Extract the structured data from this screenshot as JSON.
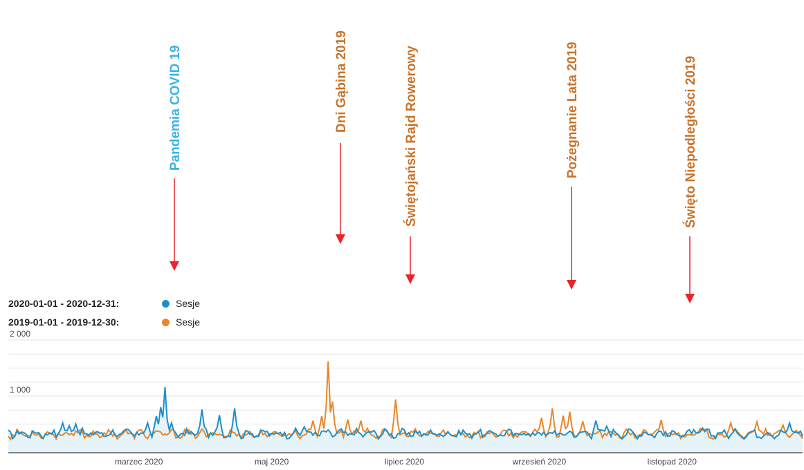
{
  "colors": {
    "series_2020": "#1f8fc8",
    "series_2019": "#e8862a",
    "annotation_2020": "#3cb3e6",
    "annotation_2019": "#c8742c",
    "arrow": "#e8262a",
    "gridline": "#e4e4e4",
    "area_fill": "#e6f3f8"
  },
  "legend": [
    {
      "range": "2020-01-01 - 2020-12-31:",
      "label": "Sesje",
      "color": "#1f8fc8"
    },
    {
      "range": "2019-01-01 - 2019-12-30:",
      "label": "Sesje",
      "color": "#e8862a"
    }
  ],
  "annotations": [
    {
      "text": "Pandemia COVID 19",
      "color": "#3cb3e6",
      "day": 70
    },
    {
      "text": "Dni Gąbina 2019",
      "color": "#c8742c",
      "day": 147
    },
    {
      "text": "Świętojański Rajd Rowerowy",
      "color": "#c8742c",
      "day": 178
    },
    {
      "text": "Pożegnanie Lata 2019",
      "color": "#c8742c",
      "day": 248
    },
    {
      "text": "Święto Niepodległości 2019",
      "color": "#c8742c",
      "day": 300
    }
  ],
  "chart_data": {
    "type": "line",
    "x_range": [
      "2020-01-01",
      "2020-12-31"
    ],
    "x_tick_labels": [
      {
        "label": "marzec 2020",
        "day": 60
      },
      {
        "label": "maj 2020",
        "day": 121
      },
      {
        "label": "lipiec 2020",
        "day": 182
      },
      {
        "label": "wrzesień 2020",
        "day": 244
      },
      {
        "label": "listopad 2020",
        "day": 305
      }
    ],
    "y_tick_labels": [
      "1 000",
      "2 000"
    ],
    "y_ticks": [
      1000,
      2000
    ],
    "ylim": [
      0,
      2000
    ],
    "series": [
      {
        "name": "Sesje",
        "period": "2020-01-01 - 2020-12-31",
        "color": "#1f8fc8",
        "baseline": 330,
        "amplitude": 70,
        "peaks": [
          [
            25,
            520
          ],
          [
            28,
            470
          ],
          [
            31,
            500
          ],
          [
            64,
            520
          ],
          [
            68,
            640
          ],
          [
            70,
            800
          ],
          [
            72,
            1160
          ],
          [
            75,
            520
          ],
          [
            89,
            760
          ],
          [
            97,
            660
          ],
          [
            104,
            780
          ],
          [
            136,
            450
          ],
          [
            270,
            560
          ],
          [
            275,
            460
          ],
          [
            319,
            430
          ],
          [
            359,
            520
          ]
        ]
      },
      {
        "name": "Sesje",
        "period": "2019-01-01 - 2019-12-30",
        "color": "#e8862a",
        "baseline": 320,
        "amplitude": 70,
        "peaks": [
          [
            140,
            560
          ],
          [
            144,
            640
          ],
          [
            147,
            1620
          ],
          [
            149,
            900
          ],
          [
            156,
            580
          ],
          [
            162,
            560
          ],
          [
            165,
            420
          ],
          [
            178,
            940
          ],
          [
            245,
            610
          ],
          [
            250,
            780
          ],
          [
            255,
            650
          ],
          [
            258,
            720
          ],
          [
            264,
            550
          ],
          [
            300,
            570
          ],
          [
            318,
            420
          ],
          [
            332,
            520
          ],
          [
            344,
            540
          ],
          [
            356,
            480
          ]
        ]
      }
    ]
  }
}
